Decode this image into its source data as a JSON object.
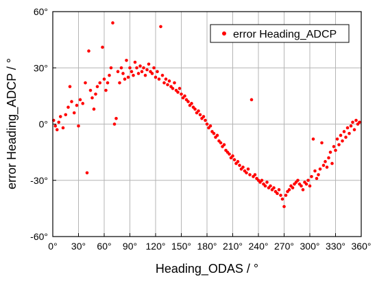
{
  "chart_data": {
    "type": "scatter",
    "xlabel": "Heading_ODAS / °",
    "ylabel": "error Heading_ADCP / °",
    "xlim": [
      0,
      360
    ],
    "ylim": [
      -60,
      60
    ],
    "x_ticks": [
      0,
      30,
      60,
      90,
      120,
      150,
      180,
      210,
      240,
      270,
      300,
      330,
      360
    ],
    "y_ticks": [
      -60,
      -30,
      0,
      30,
      60
    ],
    "x_tick_labels": [
      "0°",
      "30°",
      "60°",
      "90°",
      "120°",
      "150°",
      "180°",
      "210°",
      "240°",
      "270°",
      "300°",
      "330°",
      "360°"
    ],
    "y_tick_labels": [
      "-60°",
      "-30°",
      "0°",
      "30°",
      "60°"
    ],
    "grid": true,
    "legend_position": "top-right",
    "marker_color": "#ff0000",
    "series": [
      {
        "name": "error Heading_ADCP",
        "points": [
          [
            1,
            2
          ],
          [
            3,
            -1
          ],
          [
            5,
            -3
          ],
          [
            7,
            1
          ],
          [
            9,
            4
          ],
          [
            12,
            -2
          ],
          [
            15,
            5
          ],
          [
            18,
            9
          ],
          [
            20,
            20
          ],
          [
            22,
            12
          ],
          [
            25,
            6
          ],
          [
            28,
            10
          ],
          [
            30,
            -1
          ],
          [
            32,
            13
          ],
          [
            35,
            11
          ],
          [
            38,
            22
          ],
          [
            40,
            -26
          ],
          [
            42,
            39
          ],
          [
            44,
            18
          ],
          [
            46,
            14
          ],
          [
            48,
            8
          ],
          [
            50,
            16
          ],
          [
            52,
            20
          ],
          [
            55,
            22
          ],
          [
            58,
            41
          ],
          [
            60,
            24
          ],
          [
            62,
            18
          ],
          [
            64,
            22
          ],
          [
            66,
            26
          ],
          [
            68,
            30
          ],
          [
            70,
            54
          ],
          [
            72,
            0
          ],
          [
            74,
            3
          ],
          [
            76,
            28
          ],
          [
            78,
            22
          ],
          [
            80,
            30
          ],
          [
            82,
            27
          ],
          [
            84,
            24
          ],
          [
            86,
            34
          ],
          [
            88,
            25
          ],
          [
            90,
            30
          ],
          [
            92,
            28
          ],
          [
            94,
            26
          ],
          [
            96,
            33
          ],
          [
            98,
            30
          ],
          [
            100,
            27
          ],
          [
            102,
            31
          ],
          [
            104,
            28
          ],
          [
            106,
            30
          ],
          [
            108,
            26
          ],
          [
            110,
            29
          ],
          [
            112,
            32
          ],
          [
            114,
            28
          ],
          [
            116,
            27
          ],
          [
            118,
            30
          ],
          [
            120,
            25
          ],
          [
            122,
            28
          ],
          [
            124,
            24
          ],
          [
            126,
            52
          ],
          [
            128,
            26
          ],
          [
            130,
            22
          ],
          [
            132,
            24
          ],
          [
            134,
            21
          ],
          [
            136,
            23
          ],
          [
            138,
            20
          ],
          [
            140,
            19
          ],
          [
            142,
            22
          ],
          [
            144,
            18
          ],
          [
            146,
            17
          ],
          [
            148,
            19
          ],
          [
            150,
            16
          ],
          [
            152,
            14
          ],
          [
            154,
            15
          ],
          [
            156,
            13
          ],
          [
            158,
            12
          ],
          [
            160,
            10
          ],
          [
            162,
            11
          ],
          [
            164,
            9
          ],
          [
            166,
            8
          ],
          [
            168,
            6
          ],
          [
            170,
            7
          ],
          [
            172,
            5
          ],
          [
            174,
            3
          ],
          [
            176,
            4
          ],
          [
            178,
            2
          ],
          [
            180,
            0
          ],
          [
            182,
            -2
          ],
          [
            184,
            -1
          ],
          [
            186,
            -4
          ],
          [
            188,
            -5
          ],
          [
            190,
            -7
          ],
          [
            192,
            -6
          ],
          [
            194,
            -9
          ],
          [
            196,
            -10
          ],
          [
            198,
            -12
          ],
          [
            200,
            -11
          ],
          [
            202,
            -14
          ],
          [
            204,
            -15
          ],
          [
            206,
            -16
          ],
          [
            208,
            -18
          ],
          [
            210,
            -17
          ],
          [
            212,
            -19
          ],
          [
            214,
            -21
          ],
          [
            216,
            -20
          ],
          [
            218,
            -22
          ],
          [
            220,
            -24
          ],
          [
            222,
            -23
          ],
          [
            224,
            -25
          ],
          [
            226,
            -26
          ],
          [
            228,
            -24
          ],
          [
            230,
            -27
          ],
          [
            232,
            13
          ],
          [
            234,
            -28
          ],
          [
            236,
            -27
          ],
          [
            238,
            -29
          ],
          [
            240,
            -30
          ],
          [
            242,
            -31
          ],
          [
            244,
            -30
          ],
          [
            246,
            -32
          ],
          [
            248,
            -33
          ],
          [
            250,
            -31
          ],
          [
            252,
            -34
          ],
          [
            254,
            -33
          ],
          [
            256,
            -35
          ],
          [
            258,
            -34
          ],
          [
            260,
            -36
          ],
          [
            262,
            -37
          ],
          [
            264,
            -35
          ],
          [
            266,
            -38
          ],
          [
            268,
            -40
          ],
          [
            270,
            -44
          ],
          [
            272,
            -38
          ],
          [
            274,
            -36
          ],
          [
            276,
            -35
          ],
          [
            278,
            -33
          ],
          [
            280,
            -34
          ],
          [
            282,
            -32
          ],
          [
            284,
            -31
          ],
          [
            286,
            -30
          ],
          [
            288,
            -32
          ],
          [
            290,
            -33
          ],
          [
            292,
            -35
          ],
          [
            294,
            -31
          ],
          [
            296,
            -32
          ],
          [
            298,
            -30
          ],
          [
            300,
            -33
          ],
          [
            302,
            -28
          ],
          [
            304,
            -8
          ],
          [
            306,
            -25
          ],
          [
            308,
            -29
          ],
          [
            310,
            -27
          ],
          [
            312,
            -24
          ],
          [
            314,
            -10
          ],
          [
            316,
            -22
          ],
          [
            318,
            -20
          ],
          [
            320,
            -23
          ],
          [
            322,
            -18
          ],
          [
            324,
            -15
          ],
          [
            326,
            -21
          ],
          [
            328,
            -12
          ],
          [
            330,
            -14
          ],
          [
            332,
            -8
          ],
          [
            334,
            -11
          ],
          [
            336,
            -6
          ],
          [
            338,
            -9
          ],
          [
            340,
            -4
          ],
          [
            342,
            -7
          ],
          [
            344,
            -2
          ],
          [
            346,
            -5
          ],
          [
            348,
            -1
          ],
          [
            350,
            1
          ],
          [
            352,
            -3
          ],
          [
            354,
            2
          ],
          [
            356,
            0
          ],
          [
            358,
            1
          ]
        ]
      }
    ]
  }
}
